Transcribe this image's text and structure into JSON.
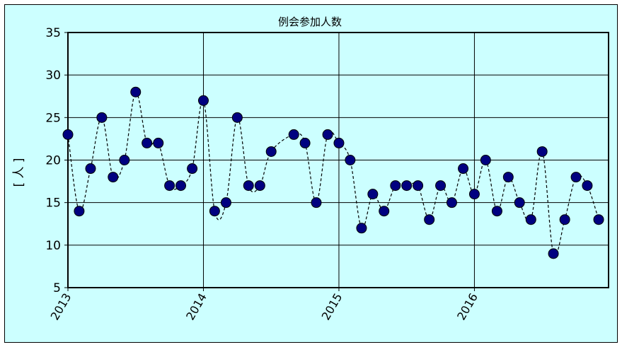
{
  "chart_data": {
    "type": "line",
    "title": "例会参加人数",
    "xlabel": "",
    "ylabel": "[ 人 ]",
    "ylim": [
      5,
      35
    ],
    "yticks": [
      5,
      10,
      15,
      20,
      25,
      30,
      35
    ],
    "xlim": [
      2013.0,
      2016.99
    ],
    "xticks": [
      "2013",
      "2014",
      "2015",
      "2016"
    ],
    "grid": true,
    "legend": "none",
    "colors": {
      "background": "#ccffff",
      "marker": "#000080",
      "line": "#000000",
      "grid": "#000000"
    },
    "series": [
      {
        "x": [
          2013.0,
          2013.083,
          2013.167,
          2013.25,
          2013.333,
          2013.417,
          2013.5,
          2013.583,
          2013.667,
          2013.75,
          2013.833,
          2013.917,
          2014.0,
          2014.083,
          2014.167,
          2014.25,
          2014.333,
          2014.417,
          2014.5,
          2014.667,
          2014.75,
          2014.833,
          2014.917,
          2015.0,
          2015.083,
          2015.167,
          2015.25,
          2015.333,
          2015.417,
          2015.5,
          2015.583,
          2015.667,
          2015.75,
          2015.833,
          2015.917,
          2016.0,
          2016.083,
          2016.167,
          2016.25,
          2016.333,
          2016.417,
          2016.5,
          2016.583,
          2016.667,
          2016.75,
          2016.833,
          2016.917
        ],
        "values": [
          23,
          14,
          19,
          25,
          18,
          20,
          28,
          22,
          22,
          17,
          17,
          19,
          27,
          14,
          15,
          25,
          17,
          17,
          21,
          23,
          22,
          15,
          23,
          22,
          20,
          12,
          16,
          14,
          17,
          17,
          17,
          13,
          17,
          15,
          19,
          16,
          20,
          14,
          18,
          15,
          13,
          21,
          9,
          13,
          18,
          17,
          13
        ]
      }
    ]
  }
}
